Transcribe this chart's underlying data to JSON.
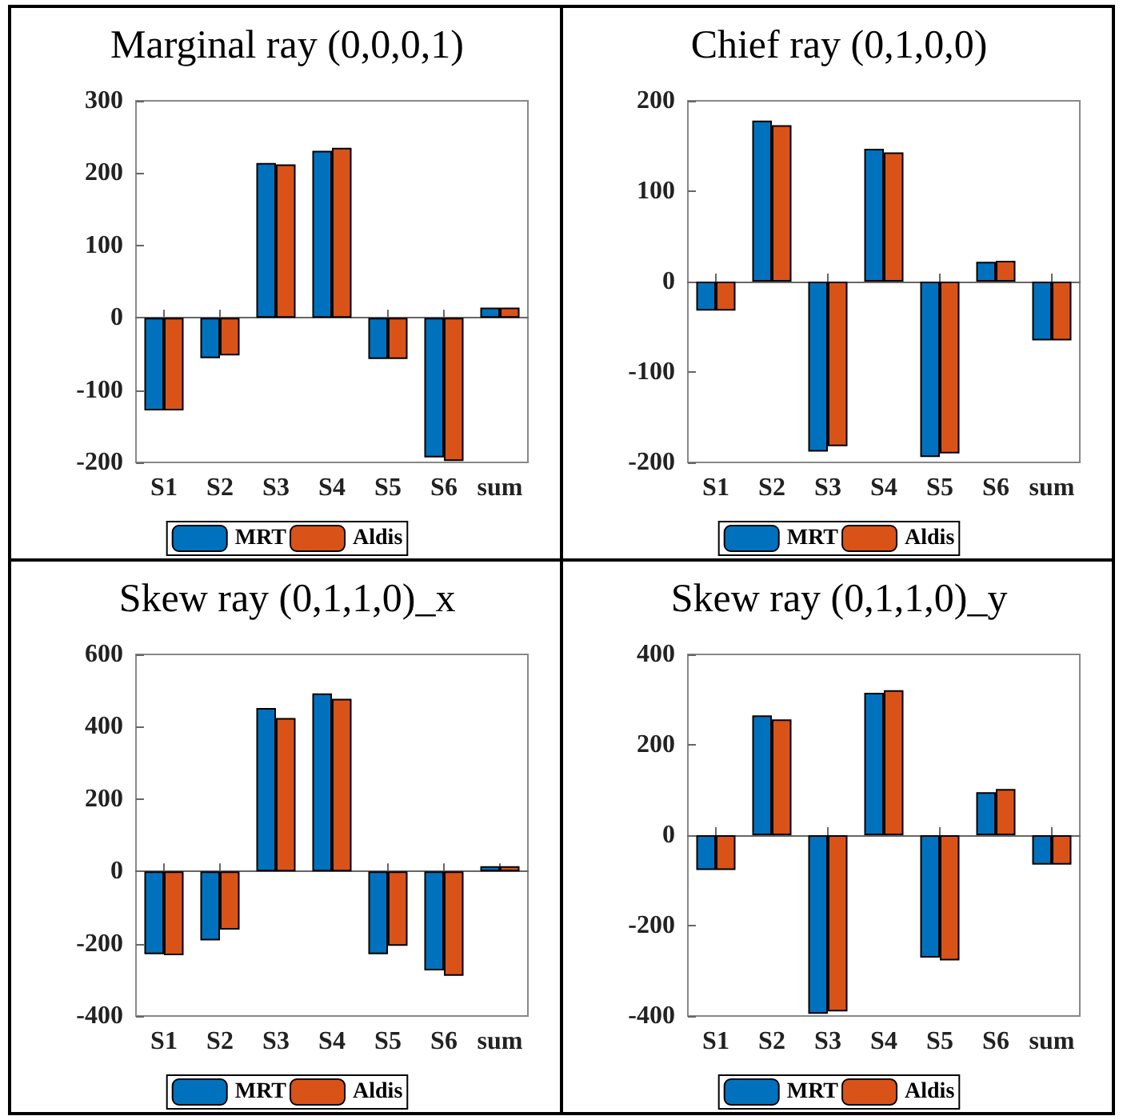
{
  "chart_data": [
    {
      "type": "bar",
      "title": "Marginal ray (0,0,0,1)",
      "categories": [
        "S1",
        "S2",
        "S3",
        "S4",
        "S5",
        "S6",
        "sum"
      ],
      "series": [
        {
          "name": "MRT",
          "color": "#0072bd",
          "values": [
            -128,
            -56,
            214,
            231,
            -57,
            -193,
            14
          ]
        },
        {
          "name": "Aldis",
          "color": "#d95319",
          "values": [
            -128,
            -52,
            212,
            235,
            -57,
            -198,
            14
          ]
        }
      ],
      "ylim": [
        -200,
        300
      ],
      "yticks": [
        -200,
        -100,
        0,
        100,
        200,
        300
      ],
      "legend": "bottom"
    },
    {
      "type": "bar",
      "title": "Chief ray (0,1,0,0)",
      "categories": [
        "S1",
        "S2",
        "S3",
        "S4",
        "S5",
        "S6",
        "sum"
      ],
      "series": [
        {
          "name": "MRT",
          "color": "#0072bd",
          "values": [
            -32,
            178,
            -188,
            147,
            -194,
            22,
            -65
          ]
        },
        {
          "name": "Aldis",
          "color": "#d95319",
          "values": [
            -32,
            173,
            -182,
            143,
            -190,
            23,
            -65
          ]
        }
      ],
      "ylim": [
        -200,
        200
      ],
      "yticks": [
        -200,
        -100,
        0,
        100,
        200
      ],
      "legend": "bottom"
    },
    {
      "type": "bar",
      "title": "Skew ray (0,1,1,0)_x",
      "categories": [
        "S1",
        "S2",
        "S3",
        "S4",
        "S5",
        "S6",
        "sum"
      ],
      "series": [
        {
          "name": "MRT",
          "color": "#0072bd",
          "values": [
            -229,
            -191,
            452,
            492,
            -229,
            -274,
            14
          ]
        },
        {
          "name": "Aldis",
          "color": "#d95319",
          "values": [
            -232,
            -161,
            424,
            477,
            -206,
            -289,
            14
          ]
        }
      ],
      "ylim": [
        -400,
        600
      ],
      "yticks": [
        -400,
        -200,
        0,
        200,
        400,
        600
      ],
      "legend": "bottom"
    },
    {
      "type": "bar",
      "title": "Skew ray (0,1,1,0)_y",
      "categories": [
        "S1",
        "S2",
        "S3",
        "S4",
        "S5",
        "S6",
        "sum"
      ],
      "series": [
        {
          "name": "MRT",
          "color": "#0072bd",
          "values": [
            -77,
            265,
            -395,
            315,
            -271,
            95,
            -65
          ]
        },
        {
          "name": "Aldis",
          "color": "#d95319",
          "values": [
            -77,
            256,
            -390,
            321,
            -277,
            102,
            -65
          ]
        }
      ],
      "ylim": [
        -400,
        400
      ],
      "yticks": [
        -400,
        -200,
        0,
        200,
        400
      ],
      "legend": "bottom"
    }
  ]
}
